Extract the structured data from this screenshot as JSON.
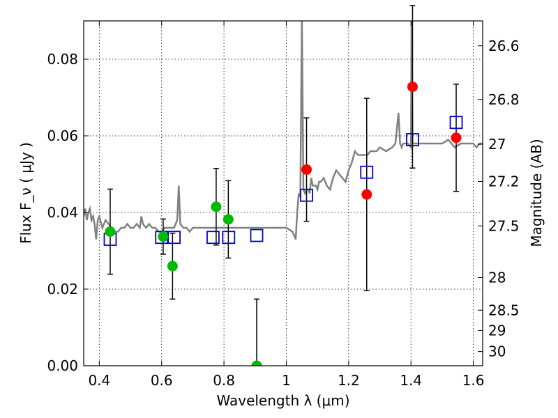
{
  "chart_data": {
    "type": "scatter",
    "title": "",
    "xlabel": "Wavelength  λ (μm)",
    "ylabel": "Flux  F_ν  ( μJy )",
    "y2label": "Magnitude (AB)",
    "xlim": [
      0.35,
      1.63
    ],
    "ylim": [
      0.0,
      0.09
    ],
    "xticks": [
      0.4,
      0.6,
      0.8,
      1.0,
      1.2,
      1.4,
      1.6
    ],
    "xtick_labels": [
      "0.4",
      "0.6",
      "0.8",
      "1",
      "1.2",
      "1.4",
      "1.6"
    ],
    "yticks": [
      0.0,
      0.02,
      0.04,
      0.06,
      0.08
    ],
    "ytick_labels": [
      "0.00",
      "0.02",
      "0.04",
      "0.06",
      "0.08"
    ],
    "y2ticks": [
      {
        "label": "26.6",
        "flux": 0.0835
      },
      {
        "label": "26.8",
        "flux": 0.0695
      },
      {
        "label": "27",
        "flux": 0.0578
      },
      {
        "label": "27.2",
        "flux": 0.0481
      },
      {
        "label": "27.5",
        "flux": 0.0365
      },
      {
        "label": "28",
        "flux": 0.023
      },
      {
        "label": "28.5",
        "flux": 0.0145
      },
      {
        "label": "29",
        "flux": 0.0092
      },
      {
        "label": "30",
        "flux": 0.0037
      }
    ],
    "grid": true,
    "colors": {
      "spectrum": "#808080",
      "optical_points": "#00bb00",
      "ir_points": "#ff0000",
      "model_boxes": "#0000cc",
      "errorbars": "#000000"
    },
    "spectrum": {
      "x": [
        0.35,
        0.355,
        0.36,
        0.365,
        0.37,
        0.375,
        0.38,
        0.385,
        0.39,
        0.395,
        0.4,
        0.41,
        0.42,
        0.43,
        0.44,
        0.45,
        0.46,
        0.47,
        0.48,
        0.49,
        0.5,
        0.51,
        0.52,
        0.53,
        0.535,
        0.54,
        0.55,
        0.56,
        0.57,
        0.58,
        0.59,
        0.6,
        0.61,
        0.62,
        0.63,
        0.64,
        0.645,
        0.65,
        0.655,
        0.66,
        0.67,
        0.68,
        0.69,
        0.7,
        0.72,
        0.74,
        0.76,
        0.78,
        0.8,
        0.82,
        0.84,
        0.86,
        0.88,
        0.9,
        0.92,
        0.94,
        0.96,
        0.98,
        1.0,
        1.02,
        1.03,
        1.035,
        1.04,
        1.045,
        1.05,
        1.055,
        1.06,
        1.065,
        1.07,
        1.075,
        1.08,
        1.085,
        1.09,
        1.095,
        1.1,
        1.105,
        1.11,
        1.12,
        1.13,
        1.14,
        1.15,
        1.16,
        1.17,
        1.18,
        1.19,
        1.2,
        1.21,
        1.22,
        1.23,
        1.24,
        1.25,
        1.26,
        1.27,
        1.28,
        1.29,
        1.3,
        1.32,
        1.34,
        1.35,
        1.36,
        1.365,
        1.37,
        1.375,
        1.38,
        1.39,
        1.4,
        1.402,
        1.405,
        1.41,
        1.42,
        1.43,
        1.44,
        1.46,
        1.48,
        1.5,
        1.52,
        1.54,
        1.56,
        1.58,
        1.6,
        1.61,
        1.62,
        1.63
      ],
      "y": [
        0.039,
        0.041,
        0.038,
        0.04,
        0.041,
        0.038,
        0.039,
        0.037,
        0.033,
        0.038,
        0.039,
        0.036,
        0.038,
        0.037,
        0.036,
        0.035,
        0.035,
        0.036,
        0.036,
        0.037,
        0.036,
        0.036,
        0.037,
        0.036,
        0.039,
        0.037,
        0.036,
        0.037,
        0.036,
        0.036,
        0.035,
        0.035,
        0.036,
        0.036,
        0.036,
        0.036,
        0.037,
        0.038,
        0.047,
        0.037,
        0.036,
        0.036,
        0.035,
        0.036,
        0.036,
        0.036,
        0.036,
        0.036,
        0.036,
        0.036,
        0.036,
        0.036,
        0.036,
        0.036,
        0.036,
        0.036,
        0.036,
        0.036,
        0.036,
        0.035,
        0.033,
        0.04,
        0.045,
        0.044,
        0.091,
        0.046,
        0.045,
        0.046,
        0.046,
        0.045,
        0.049,
        0.047,
        0.047,
        0.047,
        0.046,
        0.048,
        0.048,
        0.049,
        0.047,
        0.046,
        0.049,
        0.051,
        0.05,
        0.049,
        0.048,
        0.051,
        0.053,
        0.056,
        0.055,
        0.055,
        0.055,
        0.055,
        0.056,
        0.056,
        0.056,
        0.057,
        0.056,
        0.057,
        0.058,
        0.066,
        0.058,
        0.057,
        0.058,
        0.058,
        0.058,
        0.057,
        0.091,
        0.058,
        0.058,
        0.058,
        0.058,
        0.058,
        0.058,
        0.058,
        0.058,
        0.059,
        0.057,
        0.058,
        0.058,
        0.058,
        0.057,
        0.058,
        0.058
      ]
    },
    "optical_points": {
      "x": [
        0.435,
        0.605,
        0.635,
        0.775,
        0.814,
        0.905
      ],
      "y": [
        0.035,
        0.0337,
        0.026,
        0.0415,
        0.0382,
        0.0
      ],
      "yerr": [
        0.0111,
        0.0046,
        0.0086,
        0.01,
        0.0101,
        0.0174
      ]
    },
    "ir_points": {
      "x": [
        1.065,
        1.258,
        1.405,
        1.545
      ],
      "y": [
        0.0512,
        0.0447,
        0.0728,
        0.0595
      ],
      "yerr": [
        0.0135,
        0.0251,
        0.0212,
        0.014
      ]
    },
    "model_boxes": {
      "x": [
        0.435,
        0.6,
        0.64,
        0.765,
        0.815,
        0.905,
        1.065,
        1.258,
        1.405,
        1.545
      ],
      "y": [
        0.033,
        0.0335,
        0.0335,
        0.0335,
        0.0335,
        0.034,
        0.0445,
        0.0505,
        0.059,
        0.0635
      ]
    }
  }
}
